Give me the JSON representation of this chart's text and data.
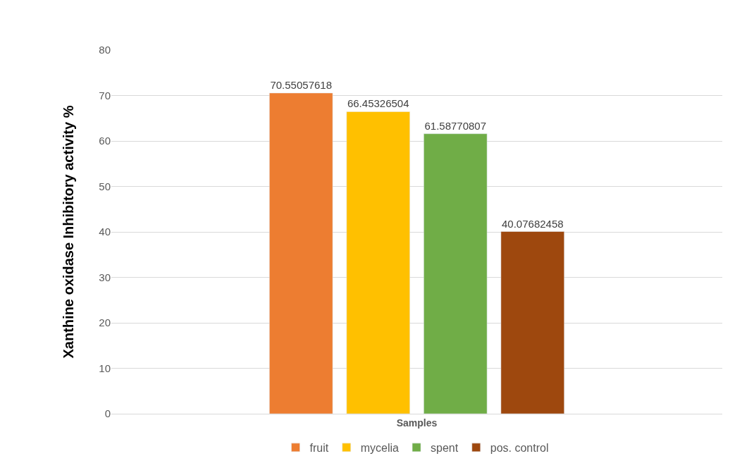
{
  "chart_data": {
    "type": "bar",
    "xlabel": "Samples",
    "ylabel": "Xanthine oxidase Inhibitory activity %",
    "categories": [
      null
    ],
    "series": [
      {
        "name": "fruit",
        "color": "#ed7d31",
        "values": [
          70.55057618
        ]
      },
      {
        "name": "mycelia",
        "color": "#ffc000",
        "values": [
          66.45326504
        ]
      },
      {
        "name": "spent",
        "color": "#70ad47",
        "values": [
          61.58770807
        ]
      },
      {
        "name": "pos. control",
        "color": "#9e480e",
        "values": [
          40.07682458
        ]
      }
    ],
    "ylim": [
      0,
      80
    ],
    "yticks": [
      0,
      10,
      20,
      30,
      40,
      50,
      60,
      70,
      80
    ],
    "grid": "y",
    "legend": "bottom",
    "data_labels": true
  }
}
